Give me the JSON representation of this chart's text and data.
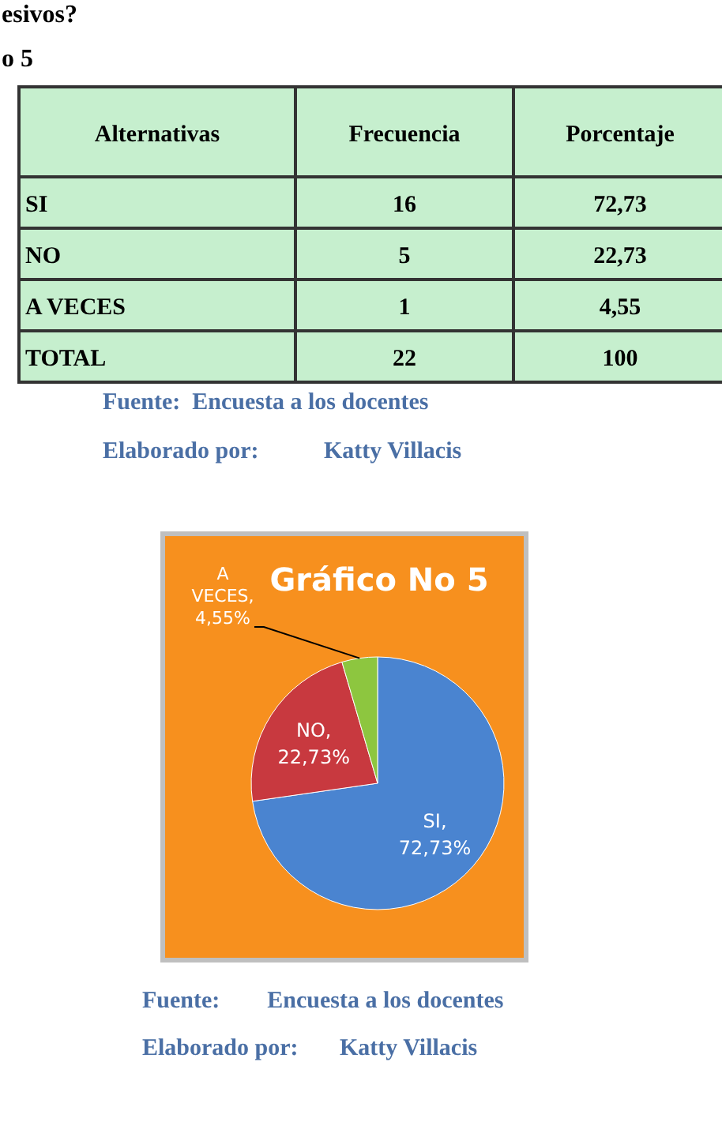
{
  "chart_data": [
    {
      "type": "other",
      "title": "esivos?",
      "subtitle": "o 5",
      "categories": [
        "Alternativas",
        "Frecuencia",
        "Porcentaje"
      ],
      "y_categories": [
        "SI",
        "NO",
        "A VECES",
        "TOTAL"
      ],
      "cell_labels": [
        [
          "16",
          "72,73"
        ],
        [
          "5",
          "22,73"
        ],
        [
          "1",
          "4,55"
        ],
        [
          "22",
          "100"
        ]
      ],
      "annotations": [
        "Fuente:  Encuesta a los docentes",
        "Elaborado por:           Katty Villacis"
      ]
    },
    {
      "type": "pie",
      "title": "Gráfico No 5",
      "categories": [
        "SI",
        "NO",
        "A VECES"
      ],
      "values": [
        72.73,
        22.73,
        4.55
      ],
      "colors": [
        "#4a84d0",
        "#c8393f",
        "#8dc63f"
      ],
      "value_labels": [
        ", 72,73%",
        ", 22,73%",
        ", 4,55%"
      ],
      "annotations": [
        "Fuente:        Encuesta a los docentes",
        "Elaborado por:       Katty Villacis"
      ]
    }
  ]
}
